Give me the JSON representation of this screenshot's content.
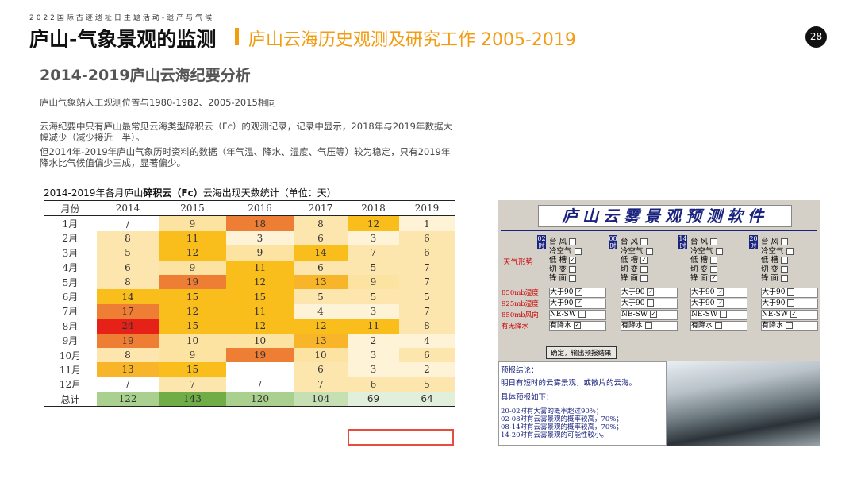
{
  "header": {
    "kicker": "2022国际古迹遗址日主题活动-遗产与气候",
    "title": "庐山-气象景观的监测",
    "title2": "庐山云海历史观测及研究工作 2005-2019",
    "page": "28"
  },
  "section_title": "2014-2019庐山云海纪要分析",
  "paragraphs": [
    "庐山气象站人工观测位置与1980-1982、2005-2015相同",
    "云海纪要中只有庐山最常见云海类型碎积云（Fc）的观测记录，记录中显示，2018年与2019年数据大幅减少（减少接近一半）。",
    "但2014年-2019年庐山气象历时资料的数据（年气温、降水、湿度、气压等）较为稳定，只有2019年降水比气候值偏少三成，显著偏少。"
  ],
  "table": {
    "caption_pre": "2014-2019年各月庐山",
    "caption_bold": "碎积云（Fc）",
    "caption_post": "云海出现天数统计（单位：天）",
    "header": [
      "月份",
      "2014",
      "2015",
      "2016",
      "2017",
      "2018",
      "2019"
    ],
    "rows": [
      [
        "1月",
        "/",
        9,
        18,
        8,
        12,
        1
      ],
      [
        "2月",
        8,
        11,
        3,
        6,
        3,
        6
      ],
      [
        "3月",
        5,
        12,
        9,
        14,
        7,
        6
      ],
      [
        "4月",
        6,
        9,
        11,
        6,
        5,
        7
      ],
      [
        "5月",
        8,
        19,
        12,
        13,
        9,
        7
      ],
      [
        "6月",
        14,
        15,
        15,
        5,
        5,
        5
      ],
      [
        "7月",
        17,
        12,
        11,
        4,
        3,
        7
      ],
      [
        "8月",
        24,
        15,
        12,
        12,
        11,
        8
      ],
      [
        "9月",
        19,
        10,
        10,
        13,
        2,
        4
      ],
      [
        "10月",
        8,
        9,
        19,
        10,
        3,
        6
      ],
      [
        "11月",
        13,
        15,
        null,
        6,
        3,
        2
      ],
      [
        "12月",
        "/",
        7,
        "/",
        7,
        6,
        5
      ],
      [
        "总计",
        122,
        143,
        120,
        104,
        69,
        64
      ]
    ],
    "colors": [
      [
        "#ffffff",
        "#fde3a2",
        "#ee7e33",
        "#fde6ad",
        "#f9bd1c",
        "#fef3d6"
      ],
      [
        "#fde6ad",
        "#f9bd1c",
        "#fef3d6",
        "#fde6ad",
        "#fef3d6",
        "#fde6ad"
      ],
      [
        "#fde6ad",
        "#f9bd1c",
        "#fde3a2",
        "#f9bd1c",
        "#fde6ad",
        "#fde6ad"
      ],
      [
        "#fde6ad",
        "#fde3a2",
        "#f9bd1c",
        "#fde6ad",
        "#fde6ad",
        "#fde6ad"
      ],
      [
        "#fde6ad",
        "#ee7e33",
        "#f9bd1c",
        "#f8b52a",
        "#fde3a2",
        "#fde6ad"
      ],
      [
        "#f9bd1c",
        "#f9bd1c",
        "#f9bd1c",
        "#fde6ad",
        "#fde6ad",
        "#fde6ad"
      ],
      [
        "#ee7e33",
        "#f9bd1c",
        "#f9bd1c",
        "#fef3d6",
        "#fef3d6",
        "#fde6ad"
      ],
      [
        "#e62117",
        "#f9bd1c",
        "#f9bd1c",
        "#f9bd1c",
        "#f9bd1c",
        "#fde6ad"
      ],
      [
        "#ee7e33",
        "#fde3a2",
        "#fde3a2",
        "#f8b52a",
        "#fef3d6",
        "#fef3d6"
      ],
      [
        "#fde6ad",
        "#fde3a2",
        "#ee7e33",
        "#fde3a2",
        "#fef3d6",
        "#fde6ad"
      ],
      [
        "#f8b52a",
        "#f9bd1c",
        "#ffffff",
        "#fde6ad",
        "#fef3d6",
        "#fef3d6"
      ],
      [
        "#ffffff",
        "#fde6ad",
        "#ffffff",
        "#fde6ad",
        "#fde6ad",
        "#fde6ad"
      ],
      [
        "#a9d08e",
        "#70ad47",
        "#a9d08e",
        "#c6e0b4",
        "#e2efda",
        "#e2efda"
      ]
    ]
  },
  "software": {
    "title": "庐山云雾景观预测软件",
    "times": [
      "02时",
      "08时",
      "14时",
      "20时"
    ],
    "options": [
      "台 风",
      "冷空气",
      "低 槽",
      "切 变",
      "锋 面"
    ],
    "row_labels": [
      "天气形势",
      "850mb湿度",
      "925mb湿度",
      "850mb风向",
      "有无降水"
    ],
    "values": [
      "大于90",
      "大于90",
      "NE-SW",
      "有降水"
    ],
    "checks": [
      [
        [
          false,
          false,
          true,
          false,
          false
        ],
        [
          false,
          false,
          true,
          false,
          false
        ],
        [
          false,
          false,
          false,
          false,
          true
        ],
        [
          false,
          false,
          false,
          false,
          false
        ]
      ],
      [
        [
          true,
          true,
          true,
          false
        ],
        [
          true,
          false,
          true,
          false
        ],
        [
          false,
          true,
          false,
          true
        ],
        [
          true,
          false,
          false,
          false
        ]
      ]
    ],
    "button": "确定，输出预报结果",
    "results": [
      "预报结论：",
      "明日有短时的云雾景观，或散片的云海。",
      "具体预报如下：",
      "20-02时有大雾的概率超过90%；",
      "02-08时有云雾景观的概率较高，70%；",
      "08-14时有云雾景观的概率较高，70%；",
      "14-20时有云雾景观的可能性较小。"
    ]
  }
}
